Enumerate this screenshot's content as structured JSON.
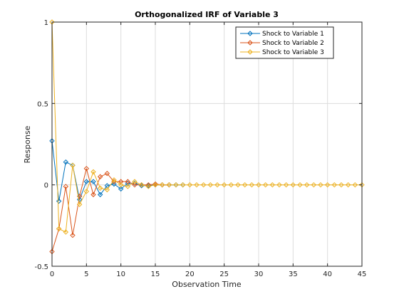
{
  "chart_data": {
    "type": "line",
    "title": "Orthogonalized IRF of Variable 3",
    "xlabel": "Observation Time",
    "ylabel": "Response",
    "xlim": [
      0,
      45
    ],
    "ylim": [
      -0.5,
      1
    ],
    "xticks": [
      0,
      5,
      10,
      15,
      20,
      25,
      30,
      35,
      40,
      45
    ],
    "yticks": [
      -0.5,
      0,
      0.5,
      1
    ],
    "ytick_labels": [
      "-0.5",
      "0",
      "0.5",
      "1"
    ],
    "grid": true,
    "legend_position": "top-right",
    "marker": "diamond",
    "series": [
      {
        "name": "Shock to Variable 1",
        "color": "#0072BD",
        "x": [
          0,
          1,
          2,
          3,
          4,
          5,
          6,
          7,
          8,
          9,
          10,
          11,
          12,
          13,
          14,
          15,
          16,
          17,
          18,
          19
        ],
        "y": [
          0.27,
          -0.1,
          0.14,
          0.12,
          -0.09,
          0.02,
          0.02,
          -0.06,
          -0.005,
          0.005,
          -0.025,
          0.01,
          0.01,
          -0.005,
          -0.005,
          0,
          0,
          0,
          0,
          0
        ]
      },
      {
        "name": "Shock to Variable 2",
        "color": "#D95319",
        "x": [
          0,
          1,
          2,
          3,
          4,
          5,
          6,
          7,
          8,
          9,
          10,
          11,
          12,
          13,
          14,
          15,
          16,
          17
        ],
        "y": [
          -0.41,
          -0.27,
          -0.01,
          -0.31,
          -0.07,
          0.1,
          -0.06,
          0.05,
          0.07,
          0.02,
          0.02,
          0.02,
          0,
          0,
          0,
          0.005,
          0,
          0
        ]
      },
      {
        "name": "Shock to Variable 3",
        "color": "#EDB120",
        "x": [
          0,
          1,
          2,
          3,
          4,
          5,
          6,
          7,
          8,
          9,
          10,
          11,
          12,
          13,
          14,
          15,
          16,
          17,
          18,
          19,
          20,
          21,
          22,
          23,
          24,
          25,
          26,
          27,
          28,
          29,
          30,
          31,
          32,
          33,
          34,
          35,
          36,
          37,
          38,
          39,
          40,
          41,
          42,
          43,
          44,
          45
        ],
        "y": [
          1,
          -0.27,
          -0.29,
          0.12,
          -0.12,
          -0.04,
          0.08,
          -0.02,
          -0.03,
          0.03,
          0,
          -0.01,
          0.02,
          0,
          -0.01,
          0,
          0,
          0,
          0,
          0,
          0,
          0,
          0,
          0,
          0,
          0,
          0,
          0,
          0,
          0,
          0,
          0,
          0,
          0,
          0,
          0,
          0,
          0,
          0,
          0,
          0,
          0,
          0,
          0,
          0,
          0
        ]
      }
    ]
  }
}
